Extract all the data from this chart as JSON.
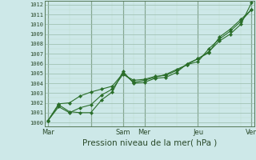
{
  "bg_color": "#cde8e8",
  "grid_color_major": "#99bbaa",
  "grid_color_minor": "#bbddcc",
  "line_color": "#2a6e2a",
  "xlabel": "Pression niveau de la mer( hPa )",
  "xlabel_fontsize": 7.5,
  "yticks": [
    1000,
    1001,
    1002,
    1003,
    1004,
    1005,
    1006,
    1007,
    1008,
    1009,
    1010,
    1011,
    1012
  ],
  "ylim": [
    999.6,
    1012.4
  ],
  "xlim": [
    -0.3,
    19.3
  ],
  "xtick_positions": [
    0,
    4,
    7,
    9,
    14,
    19
  ],
  "xtick_labels": [
    "Mar",
    "",
    "Sam",
    "Mer",
    "Jeu",
    "Ven"
  ],
  "vline_positions": [
    0,
    4,
    7,
    9,
    14,
    19
  ],
  "series1_x": [
    0,
    1,
    2,
    3,
    4,
    5,
    6,
    7,
    8,
    9,
    10,
    11,
    12,
    13,
    14,
    15,
    16,
    17,
    18,
    19
  ],
  "series1_y": [
    1000.2,
    1001.8,
    1001.1,
    1001.0,
    1001.0,
    1002.3,
    1003.1,
    1005.2,
    1004.0,
    1004.1,
    1004.5,
    1004.6,
    1005.1,
    1006.0,
    1006.5,
    1007.2,
    1008.3,
    1009.0,
    1010.0,
    1012.2
  ],
  "series2_x": [
    0,
    1,
    2,
    3,
    4,
    5,
    6,
    7,
    8,
    9,
    10,
    11,
    12,
    13,
    14,
    15,
    16,
    17,
    18,
    19
  ],
  "series2_y": [
    1000.2,
    1001.6,
    1001.0,
    1001.5,
    1001.8,
    1002.8,
    1003.4,
    1004.9,
    1004.3,
    1004.4,
    1004.7,
    1004.8,
    1005.3,
    1005.9,
    1006.2,
    1007.5,
    1008.5,
    1009.3,
    1010.3,
    1011.5
  ],
  "series3_x": [
    0,
    1,
    2,
    3,
    4,
    5,
    6,
    7,
    8,
    9,
    10,
    11,
    12,
    13,
    14,
    15,
    16,
    17,
    18,
    19
  ],
  "series3_y": [
    1000.2,
    1001.9,
    1002.0,
    1002.7,
    1003.1,
    1003.4,
    1003.7,
    1005.0,
    1004.1,
    1004.3,
    1004.6,
    1004.9,
    1005.4,
    1005.9,
    1006.5,
    1007.1,
    1008.7,
    1009.5,
    1010.5,
    1011.5
  ]
}
